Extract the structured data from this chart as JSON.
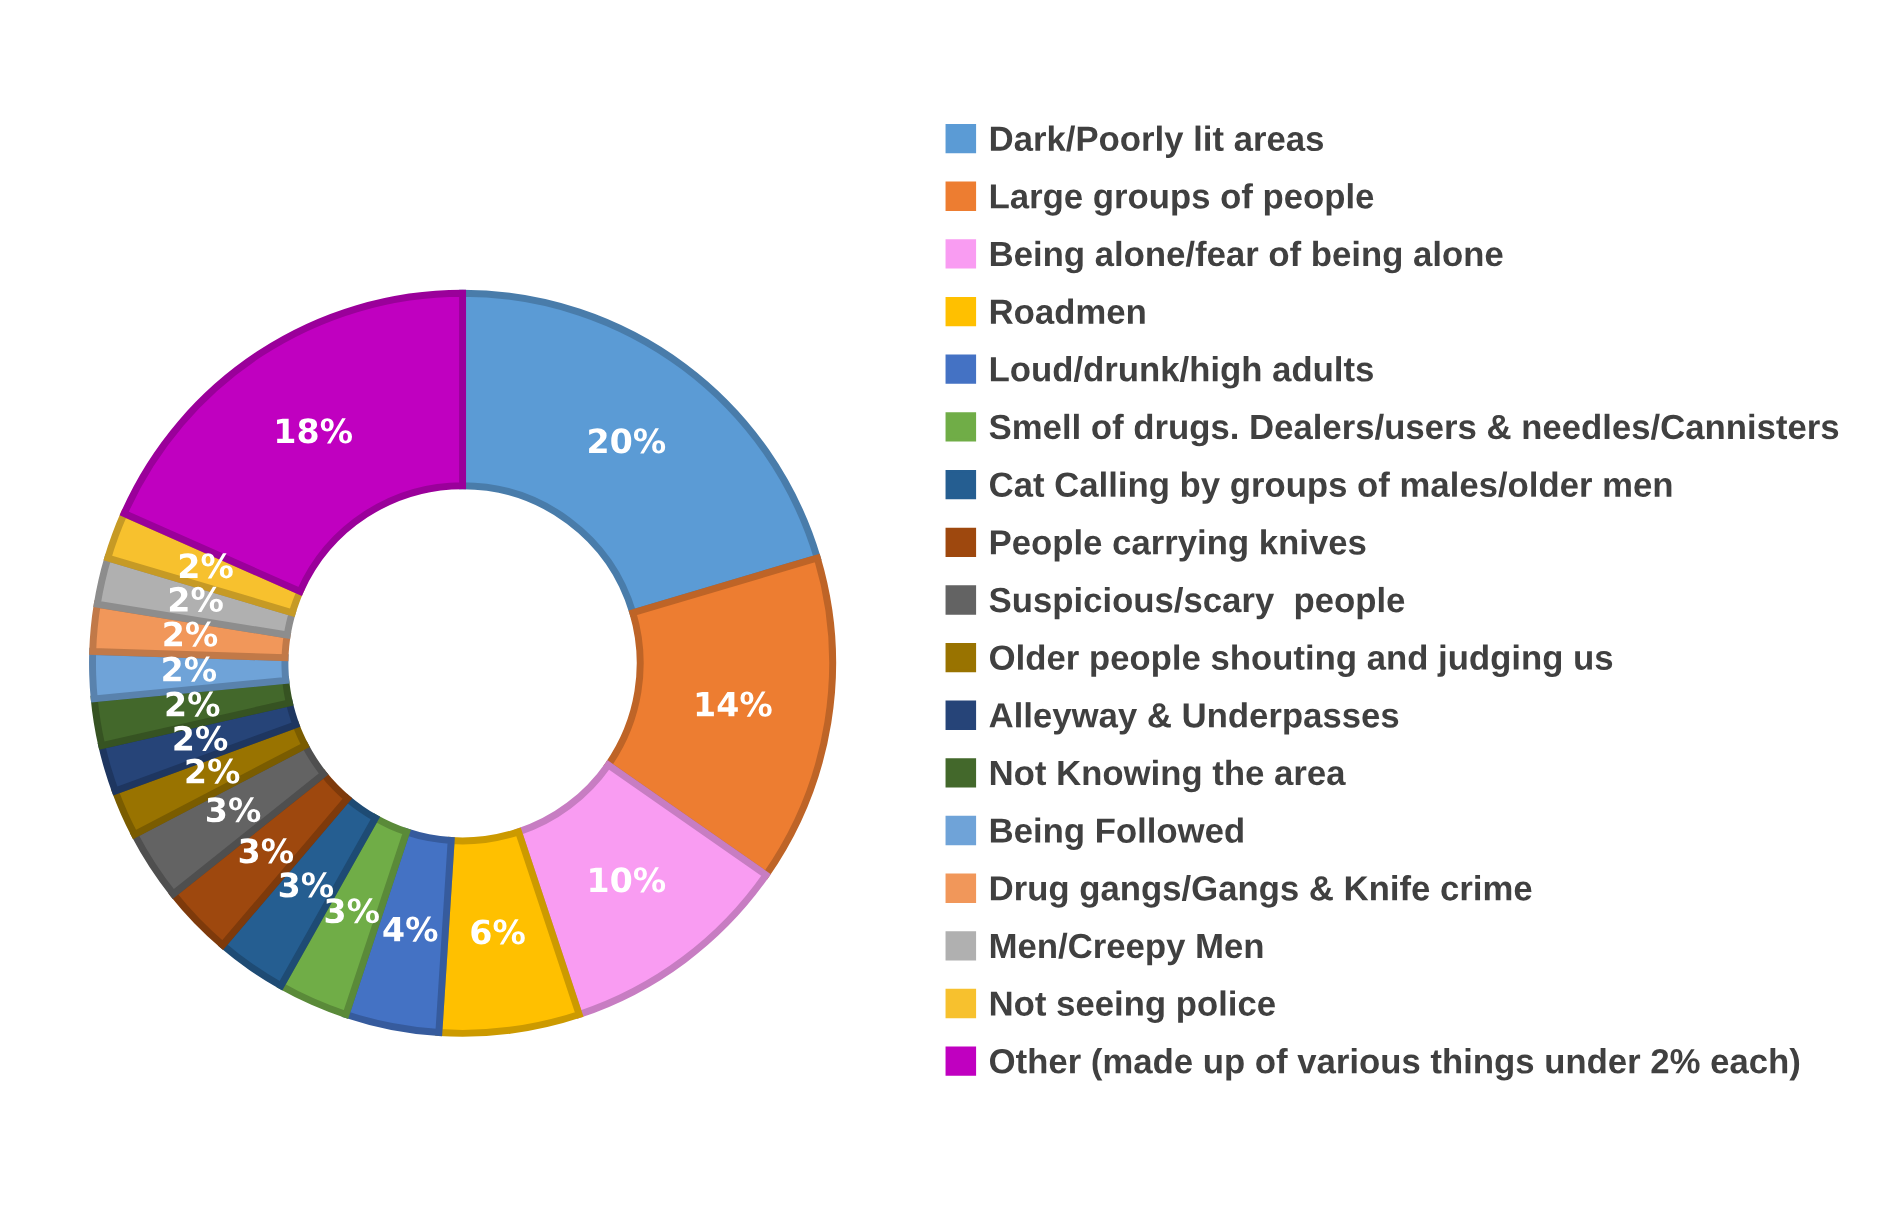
{
  "chart_data": {
    "type": "donut",
    "legend": "right",
    "data_labels": false,
    "categories": [
      "Dark/Poorly lit areas",
      "Large groups of people",
      "Being alone/fear of being alone",
      "Roadmen",
      "Loud/drunk/high adults",
      "Smell of drugs. Dealers/users & needles/Cannisters",
      "Cat Calling by groups of males/older men",
      "People carrying knives",
      "Suspicious/scary  people",
      "Older people shouting and judging us",
      "Alleyway & Underpasses",
      "Not Knowing the area",
      "Being Followed",
      "Drug gangs/Gangs & Knife crime",
      "Men/Creepy Men",
      "Not seeing police",
      "Other (made up of various things under 2% each)"
    ],
    "values": [
      20,
      14,
      10,
      6,
      4,
      3,
      3,
      3,
      3,
      2,
      2,
      2,
      2,
      2,
      2,
      2,
      18
    ],
    "value_labels": [
      "20%",
      "14%",
      "10%",
      "6%",
      "4%",
      "3%",
      "3%",
      "3%",
      "3%",
      "2%",
      "2%",
      "2%",
      "2%",
      "2%",
      "2%",
      "2%",
      "18%"
    ],
    "colors": [
      "#5b9bd5",
      "#ed7d31",
      "#f99cf2",
      "#ffc000",
      "#4472c4",
      "#70ad47",
      "#255e91",
      "#9e480e",
      "#636363",
      "#997300",
      "#264478",
      "#43682b",
      "#6fa3d8",
      "#f1975a",
      "#b0b0b0",
      "#f7c12e",
      "#c000c0"
    ]
  }
}
